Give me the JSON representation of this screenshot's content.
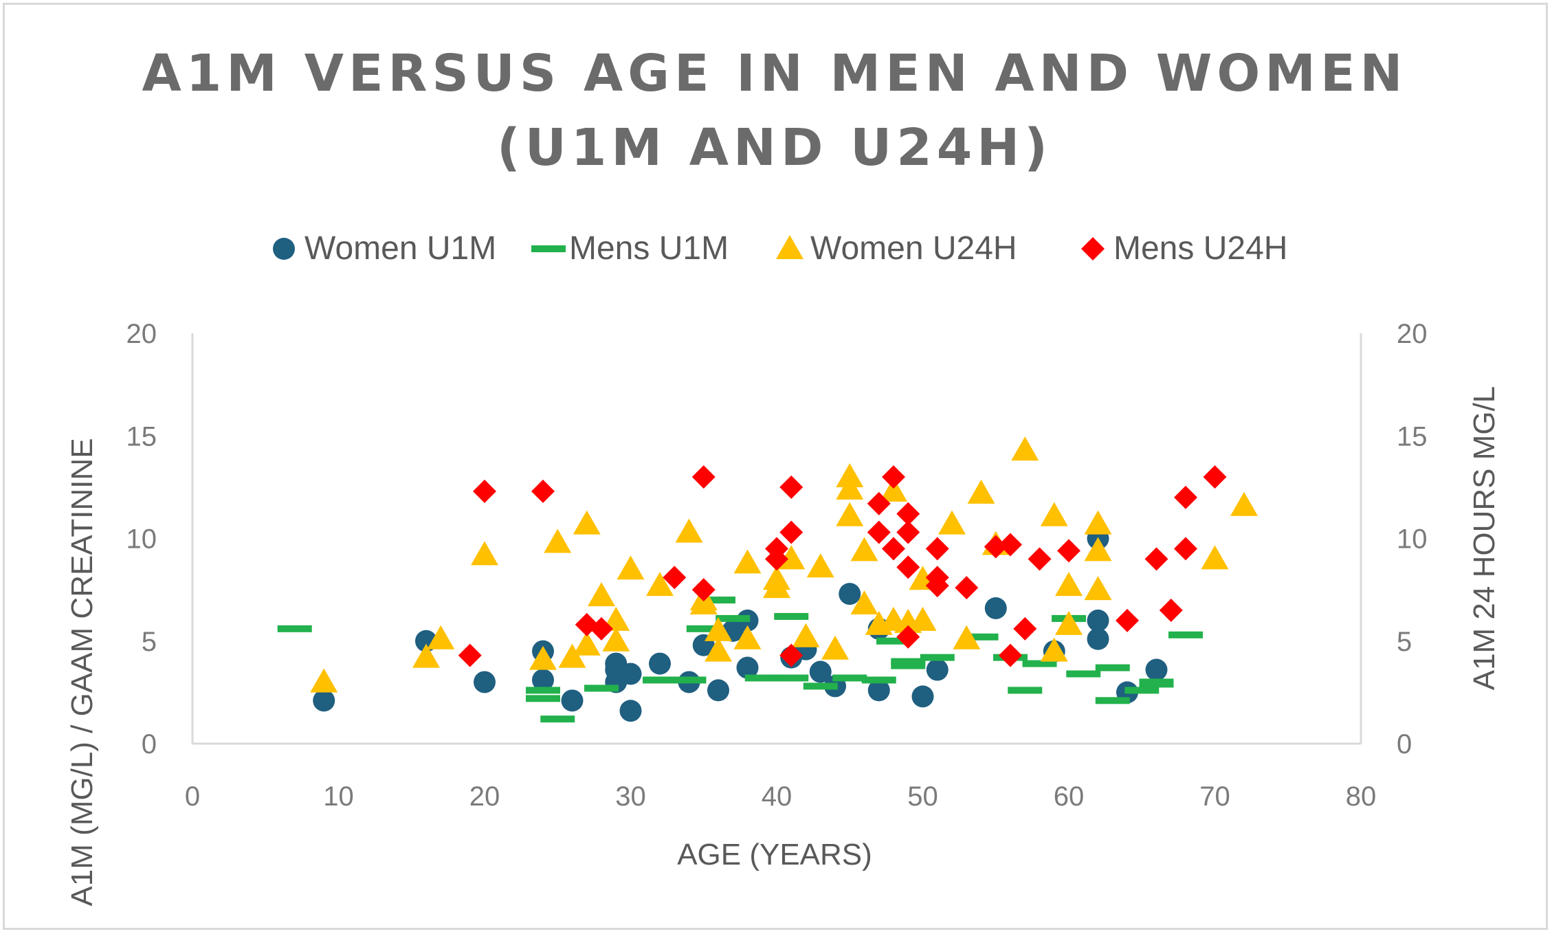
{
  "chart_data": {
    "type": "scatter",
    "title_lines": [
      "A1M VERSUS AGE IN MEN AND WOMEN",
      "(U1M AND U24H)"
    ],
    "xlabel": "AGE (YEARS)",
    "ylabel": "A1M  (MG/L) / GAAM CREATININE",
    "y2label": "A1M 24 HOURS MG/L",
    "xlim": [
      0,
      80
    ],
    "ylim": [
      0,
      20
    ],
    "y2lim": [
      0,
      20
    ],
    "x_ticks": [
      "0",
      "10",
      "20",
      "30",
      "40",
      "50",
      "60",
      "70",
      "80"
    ],
    "y_ticks": [
      "0",
      "5",
      "10",
      "15",
      "20"
    ],
    "y2_ticks": [
      "0",
      "5",
      "10",
      "15",
      "20"
    ],
    "legend_position": "top",
    "series": [
      {
        "name": "Women U1M",
        "marker": "circle",
        "color": "#1f5f80",
        "points": [
          [
            9,
            2.1
          ],
          [
            16,
            5.0
          ],
          [
            20,
            3.0
          ],
          [
            24,
            4.5
          ],
          [
            24,
            3.1
          ],
          [
            26,
            2.1
          ],
          [
            29,
            3.9
          ],
          [
            29,
            3.6
          ],
          [
            29,
            3.0
          ],
          [
            30,
            3.4
          ],
          [
            30,
            1.6
          ],
          [
            32,
            3.9
          ],
          [
            34,
            3.0
          ],
          [
            35,
            4.8
          ],
          [
            36,
            2.6
          ],
          [
            37,
            5.5
          ],
          [
            38,
            6.0
          ],
          [
            38,
            3.7
          ],
          [
            41,
            4.2
          ],
          [
            42,
            4.6
          ],
          [
            43,
            3.5
          ],
          [
            44,
            2.8
          ],
          [
            45,
            7.3
          ],
          [
            47,
            5.6
          ],
          [
            47,
            2.6
          ],
          [
            50,
            2.3
          ],
          [
            51,
            3.6
          ],
          [
            55,
            6.6
          ],
          [
            59,
            4.5
          ],
          [
            62,
            10.0
          ],
          [
            62,
            6.0
          ],
          [
            62,
            5.1
          ],
          [
            64,
            2.5
          ],
          [
            66,
            3.6
          ]
        ]
      },
      {
        "name": "Mens U1M",
        "marker": "dash",
        "color": "#22b14c",
        "points": [
          [
            7,
            5.6
          ],
          [
            24,
            2.6
          ],
          [
            24,
            2.2
          ],
          [
            25,
            1.2
          ],
          [
            28,
            2.7
          ],
          [
            32,
            3.1
          ],
          [
            34,
            3.1
          ],
          [
            35,
            5.6
          ],
          [
            36,
            7.0
          ],
          [
            37,
            6.1
          ],
          [
            39,
            3.2
          ],
          [
            41,
            6.2
          ],
          [
            41,
            3.2
          ],
          [
            43,
            2.8
          ],
          [
            45,
            3.2
          ],
          [
            47,
            3.1
          ],
          [
            48,
            5.0
          ],
          [
            49,
            3.8
          ],
          [
            49,
            4.0
          ],
          [
            51,
            4.2
          ],
          [
            54,
            5.2
          ],
          [
            56,
            4.2
          ],
          [
            57,
            2.6
          ],
          [
            58,
            3.9
          ],
          [
            60,
            6.1
          ],
          [
            61,
            3.4
          ],
          [
            63,
            2.1
          ],
          [
            63,
            3.7
          ],
          [
            65,
            2.6
          ],
          [
            66,
            2.9
          ],
          [
            66,
            3.0
          ],
          [
            68,
            5.3
          ]
        ]
      },
      {
        "name": "Women U24H",
        "marker": "triangle",
        "color": "#ffc000",
        "points": [
          [
            9,
            3.0
          ],
          [
            16,
            4.2
          ],
          [
            17,
            5.1
          ],
          [
            20,
            9.2
          ],
          [
            24,
            4.1
          ],
          [
            25,
            9.8
          ],
          [
            26,
            4.2
          ],
          [
            27,
            10.7
          ],
          [
            27,
            4.8
          ],
          [
            28,
            7.2
          ],
          [
            29,
            6.0
          ],
          [
            29,
            5.0
          ],
          [
            30,
            8.5
          ],
          [
            32,
            7.7
          ],
          [
            34,
            10.3
          ],
          [
            35,
            7.0
          ],
          [
            35,
            6.8
          ],
          [
            36,
            5.5
          ],
          [
            36,
            4.5
          ],
          [
            38,
            8.8
          ],
          [
            38,
            5.1
          ],
          [
            40,
            8.0
          ],
          [
            40,
            7.6
          ],
          [
            41,
            9.0
          ],
          [
            42,
            5.2
          ],
          [
            43,
            8.6
          ],
          [
            44,
            4.6
          ],
          [
            45,
            13.0
          ],
          [
            45,
            12.4
          ],
          [
            45,
            11.1
          ],
          [
            46,
            9.4
          ],
          [
            46,
            6.8
          ],
          [
            47,
            5.8
          ],
          [
            48,
            12.3
          ],
          [
            48,
            6.0
          ],
          [
            49,
            5.9
          ],
          [
            50,
            8.0
          ],
          [
            50,
            6.0
          ],
          [
            52,
            10.7
          ],
          [
            53,
            5.1
          ],
          [
            54,
            12.2
          ],
          [
            55,
            9.7
          ],
          [
            57,
            14.3
          ],
          [
            59,
            11.1
          ],
          [
            59,
            4.5
          ],
          [
            60,
            7.7
          ],
          [
            60,
            5.8
          ],
          [
            62,
            10.7
          ],
          [
            62,
            9.4
          ],
          [
            62,
            7.5
          ],
          [
            70,
            9.0
          ],
          [
            72,
            11.6
          ]
        ]
      },
      {
        "name": "Mens U24H",
        "marker": "diamond",
        "color": "#ff0000",
        "points": [
          [
            19,
            4.3
          ],
          [
            20,
            12.3
          ],
          [
            24,
            12.3
          ],
          [
            27,
            5.8
          ],
          [
            28,
            5.6
          ],
          [
            33,
            8.1
          ],
          [
            35,
            13.0
          ],
          [
            35,
            7.5
          ],
          [
            40,
            9.5
          ],
          [
            40,
            9.0
          ],
          [
            41,
            12.5
          ],
          [
            41,
            10.3
          ],
          [
            41,
            4.3
          ],
          [
            47,
            11.7
          ],
          [
            47,
            10.3
          ],
          [
            48,
            13.0
          ],
          [
            48,
            9.5
          ],
          [
            49,
            11.2
          ],
          [
            49,
            10.3
          ],
          [
            49,
            8.6
          ],
          [
            49,
            5.2
          ],
          [
            51,
            9.5
          ],
          [
            51,
            8.1
          ],
          [
            51,
            7.7
          ],
          [
            53,
            7.6
          ],
          [
            55,
            9.6
          ],
          [
            56,
            9.7
          ],
          [
            56,
            4.3
          ],
          [
            57,
            5.6
          ],
          [
            58,
            9.0
          ],
          [
            60,
            9.4
          ],
          [
            64,
            6.0
          ],
          [
            66,
            9.0
          ],
          [
            67,
            6.5
          ],
          [
            68,
            12.0
          ],
          [
            68,
            9.5
          ],
          [
            70,
            13.0
          ]
        ]
      }
    ]
  }
}
